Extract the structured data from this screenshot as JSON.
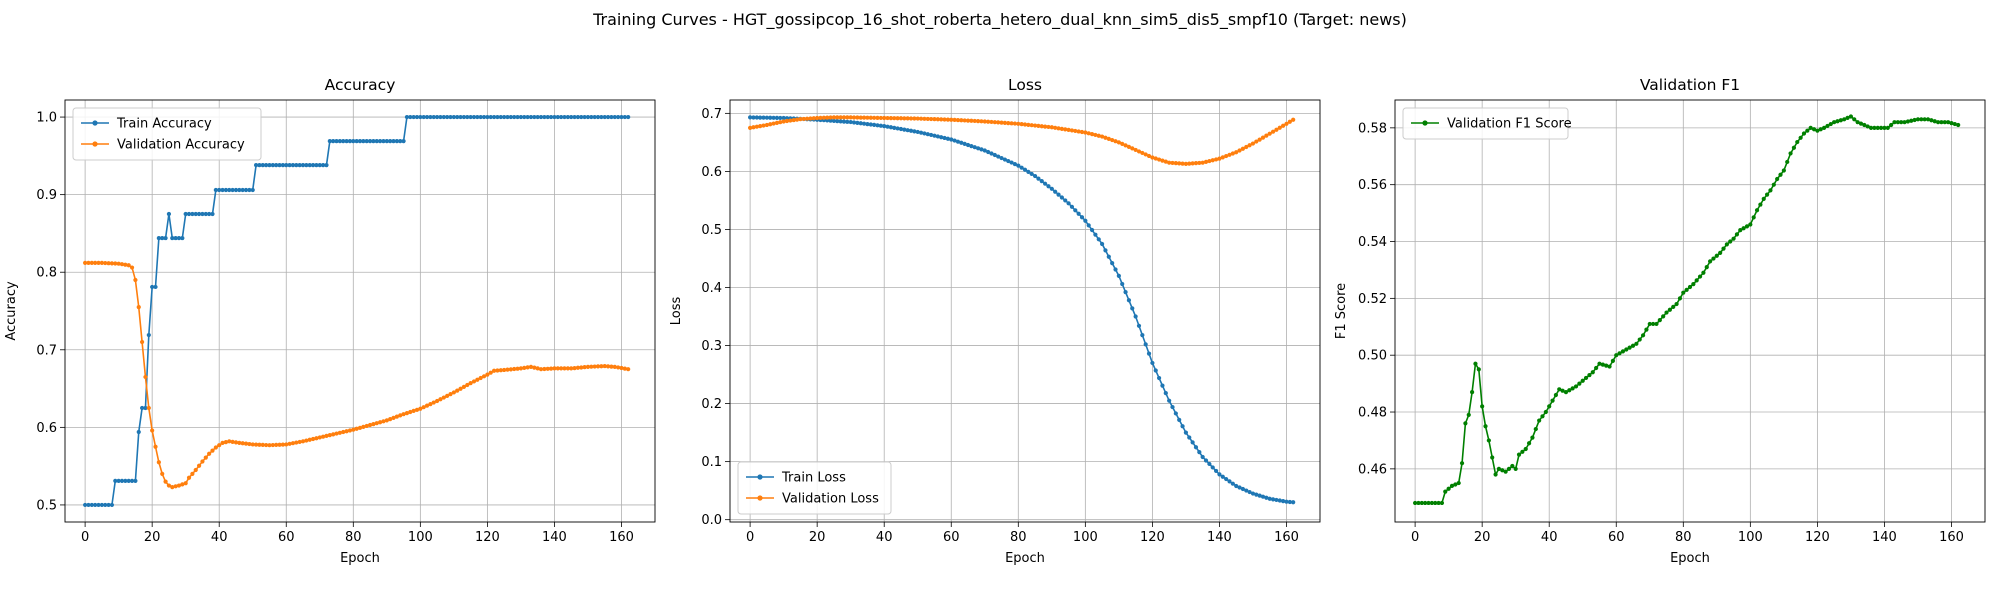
{
  "suptitle": "Training Curves - HGT_gossipcop_16_shot_roberta_hetero_dual_knn_sim5_dis5_smpf10 (Target: news)",
  "colors": {
    "blue": "#1f77b4",
    "orange": "#ff7f0e",
    "green": "#008000",
    "grid": "#b0b0b0"
  },
  "chart_data": [
    {
      "type": "line",
      "title": "Accuracy",
      "xlabel": "Epoch",
      "ylabel": "Accuracy",
      "xlim": [
        -6,
        170
      ],
      "ylim": [
        0.478,
        1.022
      ],
      "xticks": [
        0,
        20,
        40,
        60,
        80,
        100,
        120,
        140,
        160
      ],
      "yticks": [
        0.5,
        0.6,
        0.7,
        0.8,
        0.9,
        1.0
      ],
      "ytick_labels": [
        "0.5",
        "0.6",
        "0.7",
        "0.8",
        "0.9",
        "1.0"
      ],
      "grid": true,
      "legend": "upper left",
      "series": [
        {
          "name": "Train Accuracy",
          "color": "#1f77b4",
          "points": [
            [
              0,
              0.5
            ],
            [
              8,
              0.5
            ],
            [
              9,
              0.531
            ],
            [
              15,
              0.531
            ],
            [
              16,
              0.594
            ],
            [
              17,
              0.625
            ],
            [
              18,
              0.625
            ],
            [
              19,
              0.719
            ],
            [
              20,
              0.781
            ],
            [
              21,
              0.781
            ],
            [
              22,
              0.844
            ],
            [
              24,
              0.844
            ],
            [
              25,
              0.875
            ],
            [
              26,
              0.844
            ],
            [
              29,
              0.844
            ],
            [
              30,
              0.875
            ],
            [
              38,
              0.875
            ],
            [
              39,
              0.906
            ],
            [
              50,
              0.906
            ],
            [
              51,
              0.938
            ],
            [
              72,
              0.938
            ],
            [
              73,
              0.969
            ],
            [
              95,
              0.969
            ],
            [
              96,
              1.0
            ],
            [
              162,
              1.0
            ]
          ]
        },
        {
          "name": "Validation Accuracy",
          "color": "#ff7f0e",
          "points": [
            [
              0,
              0.812
            ],
            [
              5,
              0.812
            ],
            [
              10,
              0.811
            ],
            [
              13,
              0.809
            ],
            [
              14,
              0.806
            ],
            [
              15,
              0.79
            ],
            [
              16,
              0.755
            ],
            [
              17,
              0.71
            ],
            [
              18,
              0.665
            ],
            [
              19,
              0.625
            ],
            [
              20,
              0.596
            ],
            [
              21,
              0.575
            ],
            [
              22,
              0.555
            ],
            [
              23,
              0.54
            ],
            [
              24,
              0.53
            ],
            [
              25,
              0.525
            ],
            [
              26,
              0.523
            ],
            [
              28,
              0.525
            ],
            [
              30,
              0.528
            ],
            [
              31,
              0.535
            ],
            [
              33,
              0.545
            ],
            [
              35,
              0.556
            ],
            [
              37,
              0.566
            ],
            [
              39,
              0.574
            ],
            [
              41,
              0.58
            ],
            [
              43,
              0.582
            ],
            [
              46,
              0.58
            ],
            [
              50,
              0.578
            ],
            [
              55,
              0.577
            ],
            [
              60,
              0.578
            ],
            [
              65,
              0.582
            ],
            [
              70,
              0.587
            ],
            [
              75,
              0.592
            ],
            [
              80,
              0.597
            ],
            [
              85,
              0.603
            ],
            [
              90,
              0.609
            ],
            [
              95,
              0.617
            ],
            [
              100,
              0.624
            ],
            [
              105,
              0.634
            ],
            [
              110,
              0.645
            ],
            [
              115,
              0.657
            ],
            [
              120,
              0.668
            ],
            [
              122,
              0.673
            ],
            [
              125,
              0.674
            ],
            [
              130,
              0.676
            ],
            [
              133,
              0.678
            ],
            [
              136,
              0.675
            ],
            [
              140,
              0.676
            ],
            [
              145,
              0.676
            ],
            [
              150,
              0.678
            ],
            [
              155,
              0.679
            ],
            [
              158,
              0.678
            ],
            [
              162,
              0.675
            ]
          ]
        }
      ]
    },
    {
      "type": "line",
      "title": "Loss",
      "xlabel": "Epoch",
      "ylabel": "Loss",
      "xlim": [
        -6,
        170
      ],
      "ylim": [
        -0.004,
        0.723
      ],
      "xticks": [
        0,
        20,
        40,
        60,
        80,
        100,
        120,
        140,
        160
      ],
      "yticks": [
        0.0,
        0.1,
        0.2,
        0.3,
        0.4,
        0.5,
        0.6,
        0.7
      ],
      "ytick_labels": [
        "0.0",
        "0.1",
        "0.2",
        "0.3",
        "0.4",
        "0.5",
        "0.6",
        "0.7"
      ],
      "grid": true,
      "legend": "lower left",
      "series": [
        {
          "name": "Train Loss",
          "color": "#1f77b4",
          "points": [
            [
              0,
              0.693
            ],
            [
              10,
              0.692
            ],
            [
              20,
              0.689
            ],
            [
              30,
              0.685
            ],
            [
              40,
              0.678
            ],
            [
              50,
              0.668
            ],
            [
              60,
              0.655
            ],
            [
              70,
              0.636
            ],
            [
              80,
              0.61
            ],
            [
              85,
              0.592
            ],
            [
              90,
              0.57
            ],
            [
              95,
              0.545
            ],
            [
              100,
              0.515
            ],
            [
              105,
              0.475
            ],
            [
              110,
              0.42
            ],
            [
              115,
              0.35
            ],
            [
              120,
              0.27
            ],
            [
              125,
              0.205
            ],
            [
              130,
              0.15
            ],
            [
              135,
              0.108
            ],
            [
              140,
              0.078
            ],
            [
              145,
              0.058
            ],
            [
              150,
              0.045
            ],
            [
              155,
              0.036
            ],
            [
              160,
              0.031
            ],
            [
              162,
              0.03
            ]
          ]
        },
        {
          "name": "Validation Loss",
          "color": "#ff7f0e",
          "points": [
            [
              0,
              0.675
            ],
            [
              5,
              0.68
            ],
            [
              10,
              0.686
            ],
            [
              15,
              0.69
            ],
            [
              20,
              0.692
            ],
            [
              25,
              0.693
            ],
            [
              30,
              0.693
            ],
            [
              40,
              0.692
            ],
            [
              50,
              0.691
            ],
            [
              60,
              0.689
            ],
            [
              70,
              0.686
            ],
            [
              80,
              0.682
            ],
            [
              90,
              0.676
            ],
            [
              100,
              0.667
            ],
            [
              105,
              0.66
            ],
            [
              110,
              0.65
            ],
            [
              115,
              0.637
            ],
            [
              120,
              0.624
            ],
            [
              125,
              0.615
            ],
            [
              130,
              0.613
            ],
            [
              135,
              0.615
            ],
            [
              140,
              0.622
            ],
            [
              145,
              0.633
            ],
            [
              150,
              0.648
            ],
            [
              155,
              0.665
            ],
            [
              160,
              0.682
            ],
            [
              162,
              0.689
            ]
          ]
        }
      ]
    },
    {
      "type": "line",
      "title": "Validation F1",
      "xlabel": "Epoch",
      "ylabel": "F1 Score",
      "xlim": [
        -6,
        170
      ],
      "ylim": [
        0.4413,
        0.5898
      ],
      "xticks": [
        0,
        20,
        40,
        60,
        80,
        100,
        120,
        140,
        160
      ],
      "yticks": [
        0.46,
        0.48,
        0.5,
        0.52,
        0.54,
        0.56,
        0.58
      ],
      "ytick_labels": [
        "0.46",
        "0.48",
        "0.50",
        "0.52",
        "0.54",
        "0.56",
        "0.58"
      ],
      "grid": true,
      "legend": "upper left",
      "series": [
        {
          "name": "Validation F1 Score",
          "color": "#008000",
          "points": [
            [
              0,
              0.448
            ],
            [
              8,
              0.448
            ],
            [
              9,
              0.452
            ],
            [
              11,
              0.454
            ],
            [
              13,
              0.455
            ],
            [
              14,
              0.462
            ],
            [
              15,
              0.476
            ],
            [
              16,
              0.479
            ],
            [
              17,
              0.487
            ],
            [
              18,
              0.497
            ],
            [
              19,
              0.495
            ],
            [
              20,
              0.482
            ],
            [
              21,
              0.475
            ],
            [
              22,
              0.47
            ],
            [
              23,
              0.464
            ],
            [
              24,
              0.458
            ],
            [
              25,
              0.46
            ],
            [
              27,
              0.459
            ],
            [
              28,
              0.46
            ],
            [
              29,
              0.461
            ],
            [
              30,
              0.46
            ],
            [
              31,
              0.465
            ],
            [
              33,
              0.467
            ],
            [
              35,
              0.471
            ],
            [
              37,
              0.477
            ],
            [
              39,
              0.48
            ],
            [
              41,
              0.484
            ],
            [
              43,
              0.488
            ],
            [
              45,
              0.487
            ],
            [
              48,
              0.489
            ],
            [
              50,
              0.491
            ],
            [
              53,
              0.494
            ],
            [
              55,
              0.497
            ],
            [
              58,
              0.496
            ],
            [
              60,
              0.5
            ],
            [
              63,
              0.502
            ],
            [
              66,
              0.504
            ],
            [
              68,
              0.507
            ],
            [
              70,
              0.511
            ],
            [
              72,
              0.511
            ],
            [
              75,
              0.515
            ],
            [
              78,
              0.518
            ],
            [
              80,
              0.522
            ],
            [
              83,
              0.525
            ],
            [
              86,
              0.529
            ],
            [
              88,
              0.533
            ],
            [
              91,
              0.536
            ],
            [
              93,
              0.539
            ],
            [
              95,
              0.541
            ],
            [
              97,
              0.544
            ],
            [
              100,
              0.546
            ],
            [
              102,
              0.551
            ],
            [
              104,
              0.555
            ],
            [
              106,
              0.558
            ],
            [
              108,
              0.562
            ],
            [
              110,
              0.565
            ],
            [
              112,
              0.571
            ],
            [
              114,
              0.575
            ],
            [
              116,
              0.578
            ],
            [
              118,
              0.58
            ],
            [
              120,
              0.579
            ],
            [
              122,
              0.58
            ],
            [
              125,
              0.582
            ],
            [
              128,
              0.583
            ],
            [
              130,
              0.584
            ],
            [
              132,
              0.582
            ],
            [
              134,
              0.581
            ],
            [
              136,
              0.58
            ],
            [
              138,
              0.58
            ],
            [
              141,
              0.58
            ],
            [
              143,
              0.582
            ],
            [
              146,
              0.582
            ],
            [
              150,
              0.583
            ],
            [
              153,
              0.583
            ],
            [
              156,
              0.582
            ],
            [
              159,
              0.582
            ],
            [
              162,
              0.581
            ]
          ]
        }
      ]
    }
  ]
}
